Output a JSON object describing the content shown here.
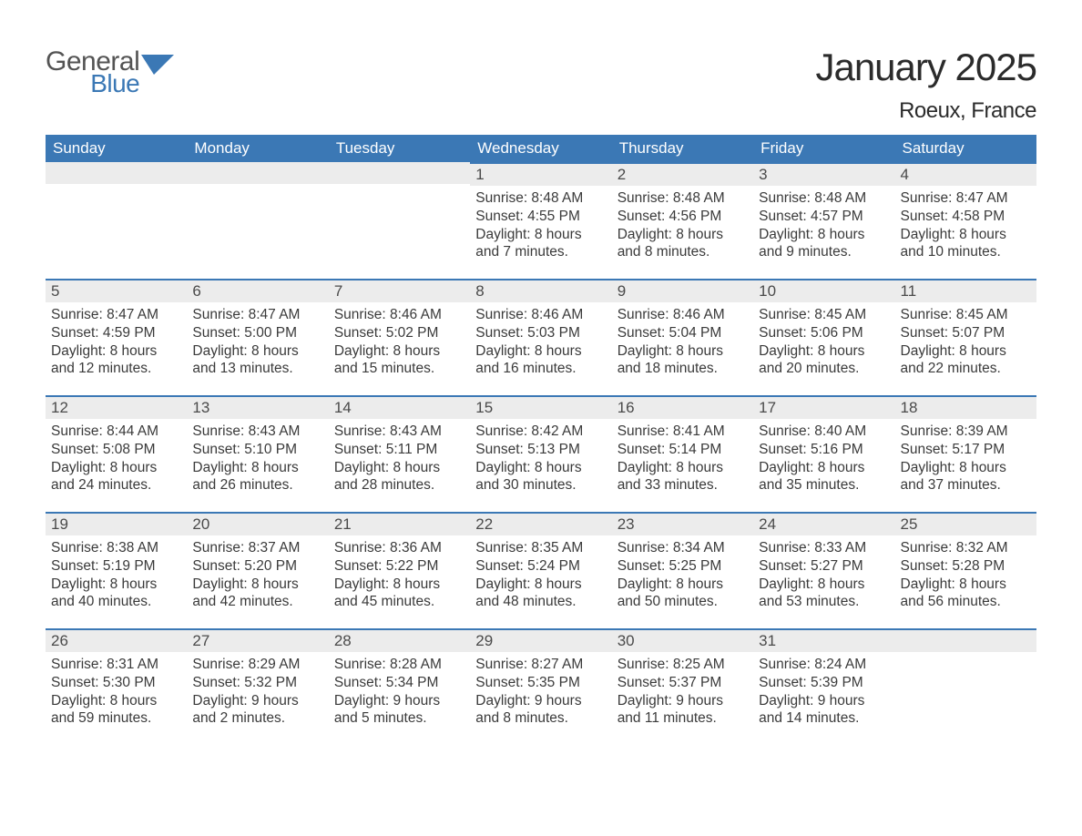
{
  "logo": {
    "general": "General",
    "blue": "Blue"
  },
  "title": "January 2025",
  "location": "Roeux, France",
  "colors": {
    "header_bg": "#3b78b5",
    "header_text": "#ffffff",
    "daynum_bg": "#ececec",
    "row_border": "#3b78b5",
    "body_text": "#3a3a3a",
    "title_text": "#2b2b2b",
    "logo_gray": "#545454",
    "logo_blue": "#3b78b5",
    "background": "#ffffff"
  },
  "typography": {
    "title_fontsize": 42,
    "location_fontsize": 24,
    "header_fontsize": 17,
    "daynum_fontsize": 17,
    "data_fontsize": 15.5
  },
  "weekdays": [
    "Sunday",
    "Monday",
    "Tuesday",
    "Wednesday",
    "Thursday",
    "Friday",
    "Saturday"
  ],
  "weeks": [
    [
      null,
      null,
      null,
      {
        "n": "1",
        "sunrise": "Sunrise: 8:48 AM",
        "sunset": "Sunset: 4:55 PM",
        "day1": "Daylight: 8 hours",
        "day2": "and 7 minutes."
      },
      {
        "n": "2",
        "sunrise": "Sunrise: 8:48 AM",
        "sunset": "Sunset: 4:56 PM",
        "day1": "Daylight: 8 hours",
        "day2": "and 8 minutes."
      },
      {
        "n": "3",
        "sunrise": "Sunrise: 8:48 AM",
        "sunset": "Sunset: 4:57 PM",
        "day1": "Daylight: 8 hours",
        "day2": "and 9 minutes."
      },
      {
        "n": "4",
        "sunrise": "Sunrise: 8:47 AM",
        "sunset": "Sunset: 4:58 PM",
        "day1": "Daylight: 8 hours",
        "day2": "and 10 minutes."
      }
    ],
    [
      {
        "n": "5",
        "sunrise": "Sunrise: 8:47 AM",
        "sunset": "Sunset: 4:59 PM",
        "day1": "Daylight: 8 hours",
        "day2": "and 12 minutes."
      },
      {
        "n": "6",
        "sunrise": "Sunrise: 8:47 AM",
        "sunset": "Sunset: 5:00 PM",
        "day1": "Daylight: 8 hours",
        "day2": "and 13 minutes."
      },
      {
        "n": "7",
        "sunrise": "Sunrise: 8:46 AM",
        "sunset": "Sunset: 5:02 PM",
        "day1": "Daylight: 8 hours",
        "day2": "and 15 minutes."
      },
      {
        "n": "8",
        "sunrise": "Sunrise: 8:46 AM",
        "sunset": "Sunset: 5:03 PM",
        "day1": "Daylight: 8 hours",
        "day2": "and 16 minutes."
      },
      {
        "n": "9",
        "sunrise": "Sunrise: 8:46 AM",
        "sunset": "Sunset: 5:04 PM",
        "day1": "Daylight: 8 hours",
        "day2": "and 18 minutes."
      },
      {
        "n": "10",
        "sunrise": "Sunrise: 8:45 AM",
        "sunset": "Sunset: 5:06 PM",
        "day1": "Daylight: 8 hours",
        "day2": "and 20 minutes."
      },
      {
        "n": "11",
        "sunrise": "Sunrise: 8:45 AM",
        "sunset": "Sunset: 5:07 PM",
        "day1": "Daylight: 8 hours",
        "day2": "and 22 minutes."
      }
    ],
    [
      {
        "n": "12",
        "sunrise": "Sunrise: 8:44 AM",
        "sunset": "Sunset: 5:08 PM",
        "day1": "Daylight: 8 hours",
        "day2": "and 24 minutes."
      },
      {
        "n": "13",
        "sunrise": "Sunrise: 8:43 AM",
        "sunset": "Sunset: 5:10 PM",
        "day1": "Daylight: 8 hours",
        "day2": "and 26 minutes."
      },
      {
        "n": "14",
        "sunrise": "Sunrise: 8:43 AM",
        "sunset": "Sunset: 5:11 PM",
        "day1": "Daylight: 8 hours",
        "day2": "and 28 minutes."
      },
      {
        "n": "15",
        "sunrise": "Sunrise: 8:42 AM",
        "sunset": "Sunset: 5:13 PM",
        "day1": "Daylight: 8 hours",
        "day2": "and 30 minutes."
      },
      {
        "n": "16",
        "sunrise": "Sunrise: 8:41 AM",
        "sunset": "Sunset: 5:14 PM",
        "day1": "Daylight: 8 hours",
        "day2": "and 33 minutes."
      },
      {
        "n": "17",
        "sunrise": "Sunrise: 8:40 AM",
        "sunset": "Sunset: 5:16 PM",
        "day1": "Daylight: 8 hours",
        "day2": "and 35 minutes."
      },
      {
        "n": "18",
        "sunrise": "Sunrise: 8:39 AM",
        "sunset": "Sunset: 5:17 PM",
        "day1": "Daylight: 8 hours",
        "day2": "and 37 minutes."
      }
    ],
    [
      {
        "n": "19",
        "sunrise": "Sunrise: 8:38 AM",
        "sunset": "Sunset: 5:19 PM",
        "day1": "Daylight: 8 hours",
        "day2": "and 40 minutes."
      },
      {
        "n": "20",
        "sunrise": "Sunrise: 8:37 AM",
        "sunset": "Sunset: 5:20 PM",
        "day1": "Daylight: 8 hours",
        "day2": "and 42 minutes."
      },
      {
        "n": "21",
        "sunrise": "Sunrise: 8:36 AM",
        "sunset": "Sunset: 5:22 PM",
        "day1": "Daylight: 8 hours",
        "day2": "and 45 minutes."
      },
      {
        "n": "22",
        "sunrise": "Sunrise: 8:35 AM",
        "sunset": "Sunset: 5:24 PM",
        "day1": "Daylight: 8 hours",
        "day2": "and 48 minutes."
      },
      {
        "n": "23",
        "sunrise": "Sunrise: 8:34 AM",
        "sunset": "Sunset: 5:25 PM",
        "day1": "Daylight: 8 hours",
        "day2": "and 50 minutes."
      },
      {
        "n": "24",
        "sunrise": "Sunrise: 8:33 AM",
        "sunset": "Sunset: 5:27 PM",
        "day1": "Daylight: 8 hours",
        "day2": "and 53 minutes."
      },
      {
        "n": "25",
        "sunrise": "Sunrise: 8:32 AM",
        "sunset": "Sunset: 5:28 PM",
        "day1": "Daylight: 8 hours",
        "day2": "and 56 minutes."
      }
    ],
    [
      {
        "n": "26",
        "sunrise": "Sunrise: 8:31 AM",
        "sunset": "Sunset: 5:30 PM",
        "day1": "Daylight: 8 hours",
        "day2": "and 59 minutes."
      },
      {
        "n": "27",
        "sunrise": "Sunrise: 8:29 AM",
        "sunset": "Sunset: 5:32 PM",
        "day1": "Daylight: 9 hours",
        "day2": "and 2 minutes."
      },
      {
        "n": "28",
        "sunrise": "Sunrise: 8:28 AM",
        "sunset": "Sunset: 5:34 PM",
        "day1": "Daylight: 9 hours",
        "day2": "and 5 minutes."
      },
      {
        "n": "29",
        "sunrise": "Sunrise: 8:27 AM",
        "sunset": "Sunset: 5:35 PM",
        "day1": "Daylight: 9 hours",
        "day2": "and 8 minutes."
      },
      {
        "n": "30",
        "sunrise": "Sunrise: 8:25 AM",
        "sunset": "Sunset: 5:37 PM",
        "day1": "Daylight: 9 hours",
        "day2": "and 11 minutes."
      },
      {
        "n": "31",
        "sunrise": "Sunrise: 8:24 AM",
        "sunset": "Sunset: 5:39 PM",
        "day1": "Daylight: 9 hours",
        "day2": "and 14 minutes."
      },
      null
    ]
  ]
}
